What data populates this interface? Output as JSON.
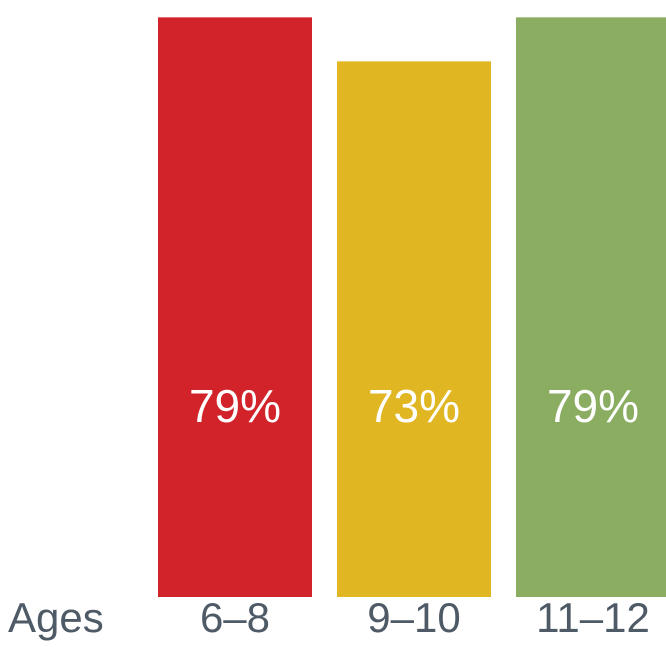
{
  "chart_data": {
    "type": "bar",
    "categories": [
      "6–8",
      "9–10",
      "11–12"
    ],
    "values": [
      79,
      73,
      79
    ],
    "value_labels": [
      "79%",
      "73%",
      "79%"
    ],
    "axis_prefix": "Ages",
    "title": "",
    "xlabel": "",
    "ylabel": "",
    "ylim": [
      0,
      80
    ],
    "grid": false,
    "legend": "none",
    "colors": [
      "#d2232a",
      "#e1b623",
      "#8aad62"
    ],
    "label_color": "#ffffff",
    "tick_color": "#4f5a67"
  }
}
